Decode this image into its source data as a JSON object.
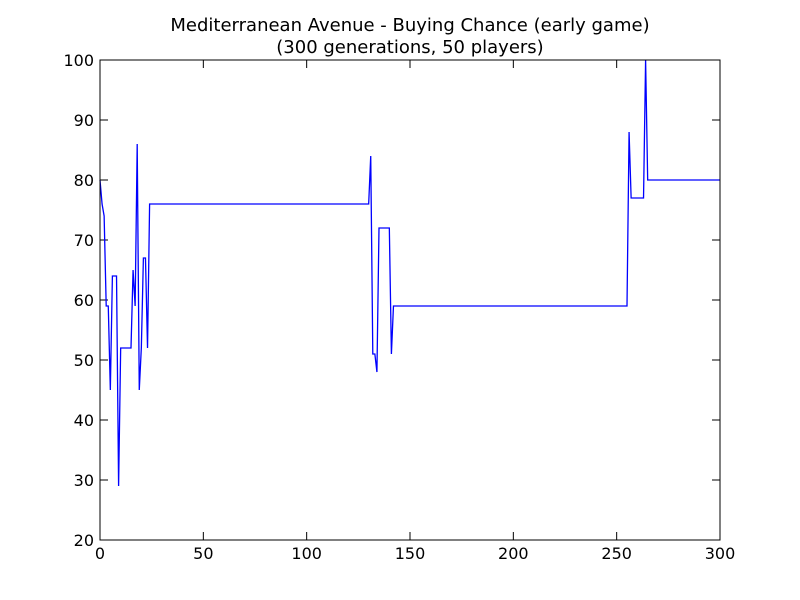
{
  "chart_data": {
    "type": "line",
    "title": "Mediterranean Avenue - Buying Chance (early game)",
    "subtitle": "(300 generations, 50 players)",
    "xlabel": "",
    "ylabel": "",
    "xlim": [
      0,
      300
    ],
    "ylim": [
      20,
      100
    ],
    "x_ticks": [
      0,
      50,
      100,
      150,
      200,
      250,
      300
    ],
    "y_ticks": [
      20,
      30,
      40,
      50,
      60,
      70,
      80,
      90,
      100
    ],
    "grid": false,
    "legend": "none",
    "series": [
      {
        "color": "#0000ff",
        "x": [
          0,
          1,
          2,
          3,
          4,
          5,
          6,
          7,
          8,
          9,
          10,
          11,
          12,
          13,
          14,
          15,
          16,
          17,
          18,
          19,
          20,
          21,
          22,
          23,
          24,
          25,
          26,
          30,
          40,
          60,
          80,
          100,
          120,
          130,
          131,
          132,
          133,
          134,
          135,
          136,
          137,
          138,
          139,
          140,
          141,
          142,
          143,
          150,
          175,
          200,
          225,
          250,
          255,
          256,
          257,
          258,
          260,
          262,
          263,
          264,
          265,
          266,
          270,
          280,
          290,
          300
        ],
        "y": [
          80,
          76,
          74,
          59,
          59,
          45,
          64,
          64,
          64,
          29,
          52,
          52,
          52,
          52,
          52,
          52,
          65,
          59,
          86,
          45,
          52,
          67,
          67,
          52,
          76,
          76,
          76,
          76,
          76,
          76,
          76,
          76,
          76,
          76,
          84,
          51,
          51,
          48,
          72,
          72,
          72,
          72,
          72,
          72,
          51,
          59,
          59,
          59,
          59,
          59,
          59,
          59,
          59,
          88,
          77,
          77,
          77,
          77,
          77,
          100,
          80,
          80,
          80,
          80,
          80,
          80
        ]
      }
    ]
  }
}
